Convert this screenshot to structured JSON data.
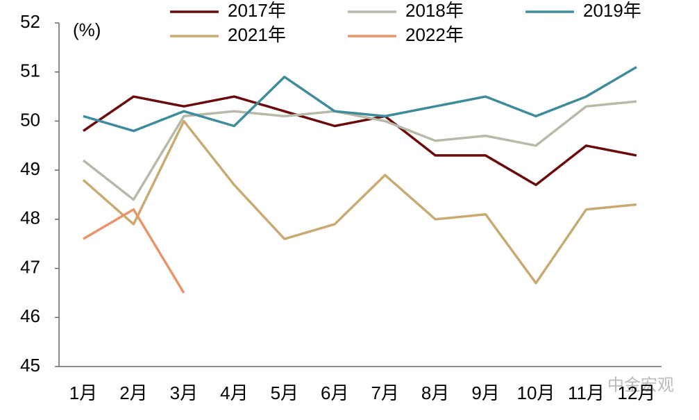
{
  "chart_data": {
    "type": "line",
    "unit_label": "(%)",
    "categories": [
      "1月",
      "2月",
      "3月",
      "4月",
      "5月",
      "6月",
      "7月",
      "8月",
      "9月",
      "10月",
      "11月",
      "12月"
    ],
    "series": [
      {
        "name": "2017年",
        "color": "#6b0a0a",
        "values": [
          49.8,
          50.5,
          50.3,
          50.5,
          50.2,
          49.9,
          50.1,
          49.3,
          49.3,
          48.7,
          49.5,
          49.3
        ]
      },
      {
        "name": "2018年",
        "color": "#b9b9a9",
        "values": [
          49.2,
          48.4,
          50.1,
          50.2,
          50.1,
          50.2,
          50.0,
          49.6,
          49.7,
          49.5,
          50.3,
          50.4
        ]
      },
      {
        "name": "2019年",
        "color": "#3d8b9b",
        "values": [
          50.1,
          49.8,
          50.2,
          49.9,
          50.9,
          50.2,
          50.1,
          50.3,
          50.5,
          50.1,
          50.5,
          51.1
        ]
      },
      {
        "name": "2021年",
        "color": "#c9aa72",
        "values": [
          48.8,
          47.9,
          50.0,
          48.7,
          47.6,
          47.9,
          48.9,
          48.0,
          48.1,
          46.7,
          48.2,
          48.3
        ]
      },
      {
        "name": "2022年",
        "color": "#e8956a",
        "values": [
          47.6,
          48.2,
          46.5,
          null,
          null,
          null,
          null,
          null,
          null,
          null,
          null,
          null
        ]
      }
    ],
    "ylim": [
      45,
      52
    ],
    "yticks": [
      45,
      46,
      47,
      48,
      49,
      50,
      51,
      52
    ],
    "watermark": "中金宏观"
  }
}
